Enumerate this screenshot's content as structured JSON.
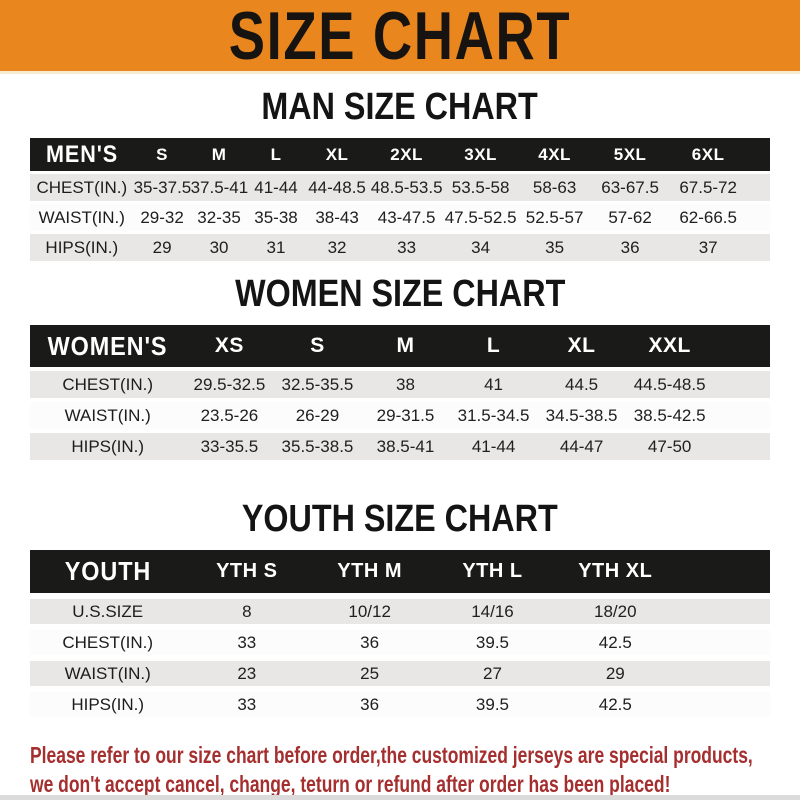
{
  "banner": {
    "title": "SIZE CHART"
  },
  "colors": {
    "banner_bg": "#E9861E",
    "bar_bg": "#1A1A18",
    "row_gray": "#E8E7E5",
    "notice_red": "#A52E2E"
  },
  "tables": [
    {
      "id": "men",
      "title": "MAN SIZE CHART",
      "header_label": "MEN'S",
      "sizes": [
        "S",
        "M",
        "L",
        "XL",
        "2XL",
        "3XL",
        "4XL",
        "5XL",
        "6XL"
      ],
      "rows": [
        {
          "label": "CHEST(IN.)",
          "values": [
            "35-37.5",
            "37.5-41",
            "41-44",
            "44-48.5",
            "48.5-53.5",
            "53.5-58",
            "58-63",
            "63-67.5",
            "67.5-72"
          ]
        },
        {
          "label": "WAIST(IN.)",
          "values": [
            "29-32",
            "32-35",
            "35-38",
            "38-43",
            "43-47.5",
            "47.5-52.5",
            "52.5-57",
            "57-62",
            "62-66.5"
          ]
        },
        {
          "label": "HIPS(IN.)",
          "values": [
            "29",
            "30",
            "31",
            "32",
            "33",
            "34",
            "35",
            "36",
            "37"
          ]
        }
      ]
    },
    {
      "id": "women",
      "title": "WOMEN SIZE CHART",
      "header_label": "WOMEN'S",
      "sizes": [
        "XS",
        "S",
        "M",
        "L",
        "XL",
        "XXL"
      ],
      "rows": [
        {
          "label": "CHEST(IN.)",
          "values": [
            "29.5-32.5",
            "32.5-35.5",
            "38",
            "41",
            "44.5",
            "44.5-48.5"
          ]
        },
        {
          "label": "WAIST(IN.)",
          "values": [
            "23.5-26",
            "26-29",
            "29-31.5",
            "31.5-34.5",
            "34.5-38.5",
            "38.5-42.5"
          ]
        },
        {
          "label": "HIPS(IN.)",
          "values": [
            "33-35.5",
            "35.5-38.5",
            "38.5-41",
            "41-44",
            "44-47",
            "47-50"
          ]
        }
      ]
    },
    {
      "id": "youth",
      "title": "YOUTH SIZE CHART",
      "header_label": "YOUTH",
      "sizes": [
        "YTH S",
        "YTH M",
        "YTH L",
        "YTH XL"
      ],
      "rows": [
        {
          "label": "U.S.SIZE",
          "values": [
            "8",
            "10/12",
            "14/16",
            "18/20"
          ]
        },
        {
          "label": "CHEST(IN.)",
          "values": [
            "33",
            "36",
            "39.5",
            "42.5"
          ]
        },
        {
          "label": "WAIST(IN.)",
          "values": [
            "23",
            "25",
            "27",
            "29"
          ]
        },
        {
          "label": "HIPS(IN.)",
          "values": [
            "33",
            "36",
            "39.5",
            "42.5"
          ]
        }
      ]
    }
  ],
  "notice": {
    "line1": "Please refer to our size chart before order,the customized jerseys are special products,",
    "line2": "we don't accept cancel, change, teturn or refund after order has been placed!"
  }
}
